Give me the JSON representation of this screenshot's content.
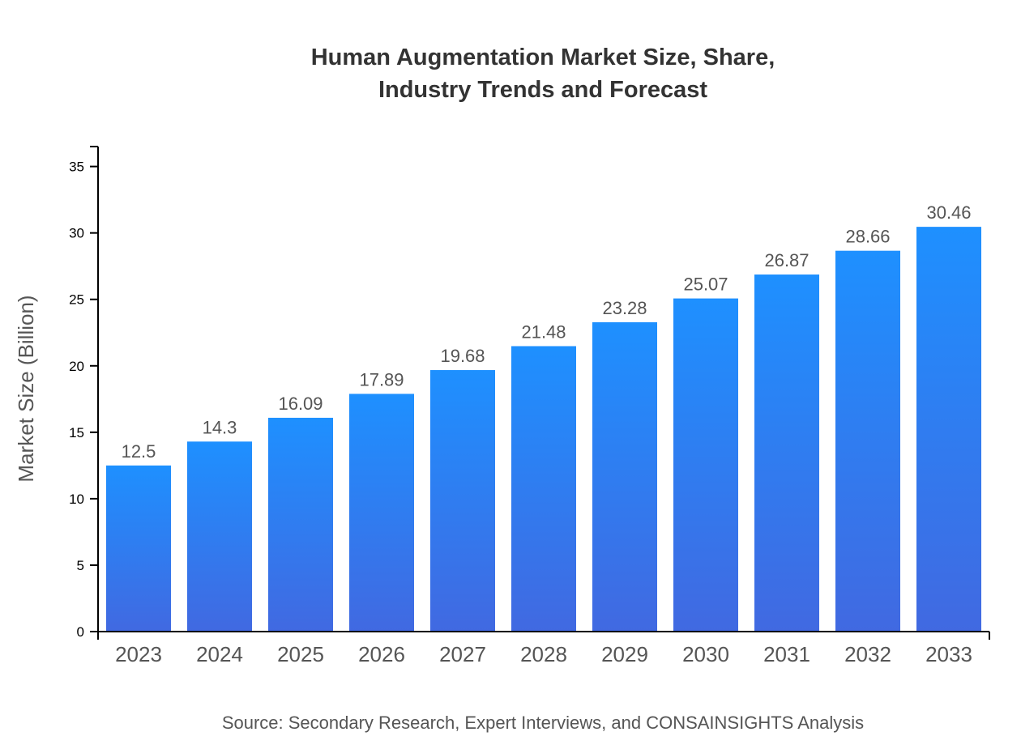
{
  "chart_data": {
    "type": "bar",
    "title_lines": [
      "Human Augmentation Market Size, Share,",
      "Industry Trends and Forecast"
    ],
    "xlabel": "",
    "ylabel": "Market Size (Billion)",
    "categories": [
      "2023",
      "2024",
      "2025",
      "2026",
      "2027",
      "2028",
      "2029",
      "2030",
      "2031",
      "2032",
      "2033"
    ],
    "values": [
      12.5,
      14.3,
      16.09,
      17.89,
      19.68,
      21.48,
      23.28,
      25.07,
      26.87,
      28.66,
      30.46
    ],
    "data_labels": [
      "12.5",
      "14.3",
      "16.09",
      "17.89",
      "19.68",
      "21.48",
      "23.28",
      "25.07",
      "26.87",
      "28.66",
      "30.46"
    ],
    "yticks": [
      0,
      5,
      10,
      15,
      20,
      25,
      30,
      35
    ],
    "ylim": [
      0,
      36.5
    ],
    "grid": false,
    "colors": {
      "bar_top": "#1E90FF",
      "bar_bottom": "#4169E1",
      "text": "#555555",
      "title": "#333333"
    },
    "source": "Source: Secondary Research, Expert Interviews, and CONSAINSIGHTS Analysis"
  }
}
